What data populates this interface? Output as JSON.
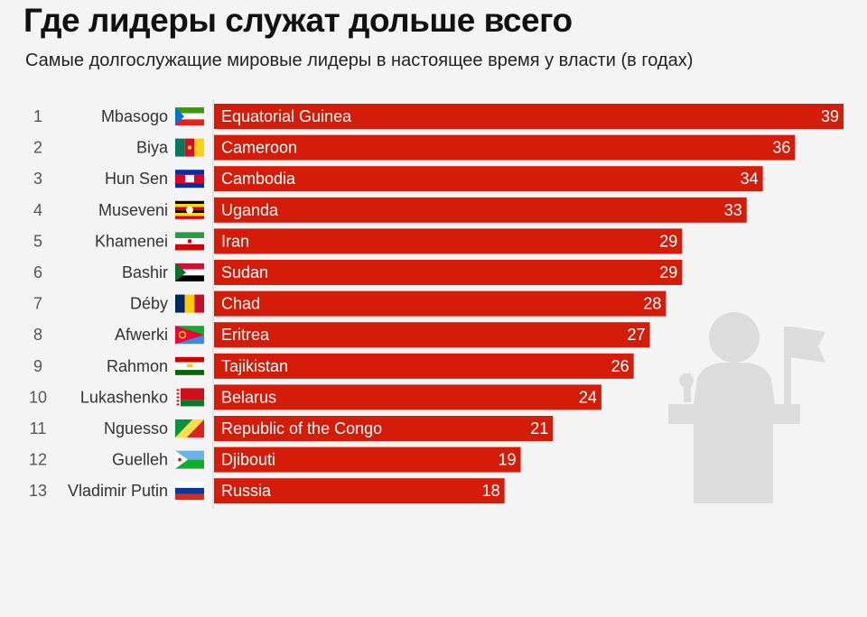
{
  "title": "Где лидеры служат дольше всего",
  "subtitle": "Самые долгослужащие мировые лидеры в настоящее время у власти (в годах)",
  "colors": {
    "bar": "#d41c08",
    "icon": "#dcdcdc",
    "axis": "#cfcfcf"
  },
  "chart_data": {
    "type": "bar",
    "orientation": "horizontal",
    "title": "Где лидеры служат дольше всего",
    "subtitle": "Самые долгослужащие мировые лидеры в настоящее время у власти (в годах)",
    "ranks": [
      "1",
      "2",
      "3",
      "4",
      "5",
      "6",
      "7",
      "8",
      "9",
      "10",
      "11",
      "12",
      "13"
    ],
    "leaders": [
      "Mbasogo",
      "Biya",
      "Hun Sen",
      "Museveni",
      "Khamenei",
      "Bashir",
      "Déby",
      "Afwerki",
      "Rahmon",
      "Lukashenko",
      "Nguesso",
      "Guelleh",
      "Vladimir Putin"
    ],
    "categories": [
      "Equatorial Guinea",
      "Cameroon",
      "Cambodia",
      "Uganda",
      "Iran",
      "Sudan",
      "Chad",
      "Eritrea",
      "Tajikistan",
      "Belarus",
      "Republic of the Congo",
      "Djibouti",
      "Russia"
    ],
    "values": [
      39,
      36,
      34,
      33,
      29,
      29,
      28,
      27,
      26,
      24,
      21,
      19,
      18
    ],
    "flags": [
      "equatorial-guinea-flag",
      "cameroon-flag",
      "cambodia-flag",
      "uganda-flag",
      "iran-flag",
      "sudan-flag",
      "chad-flag",
      "eritrea-flag",
      "tajikistan-flag",
      "belarus-flag",
      "congo-flag",
      "djibouti-flag",
      "russia-flag"
    ],
    "xlim": [
      0,
      39
    ],
    "grid": false,
    "legend": "none"
  },
  "decoration": {
    "icon": "leader-at-podium-icon"
  }
}
